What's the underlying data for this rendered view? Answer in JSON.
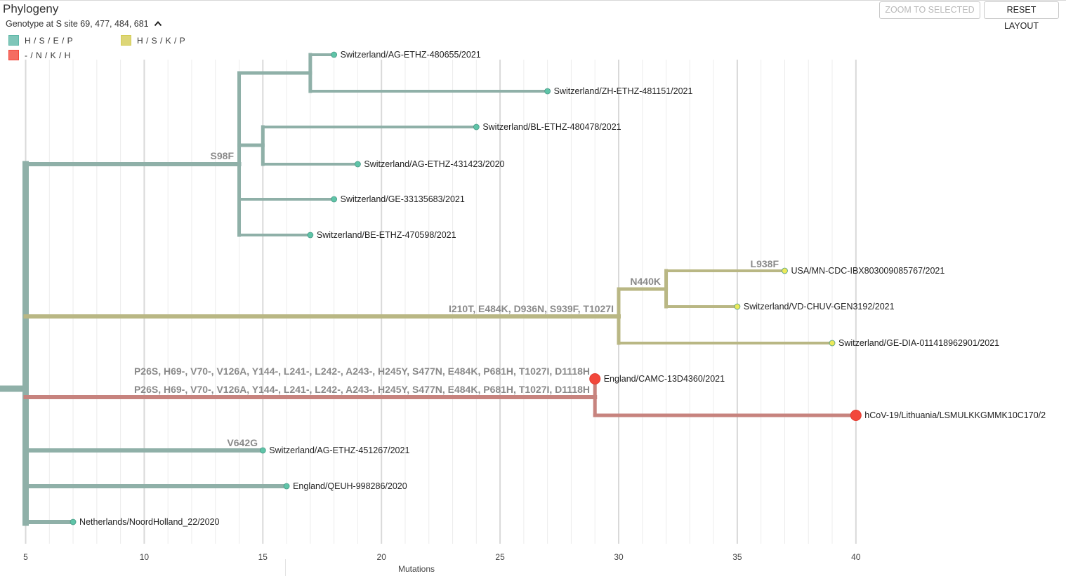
{
  "header": {
    "title": "Phylogeny",
    "subtitle": "Genotype at S site 69, 477, 484, 681",
    "zoom_label": "ZOOM TO SELECTED",
    "reset_label": "RESET LAYOUT"
  },
  "legend": [
    {
      "label": "H / S / E / P",
      "color": "#5fb8a8"
    },
    {
      "label": "H / S / K / P",
      "color": "#d4cc55"
    },
    {
      "label": "- / N / K / H",
      "color": "#f2473b"
    }
  ],
  "colors": {
    "teal_branch": "#8fb0a8",
    "olive_branch": "#b9b784",
    "red_branch": "#c7837e",
    "teal_tip": "#5fc4a8",
    "yellow_tip": "#ece95a",
    "red_tip": "#f2473b"
  },
  "chart_data": {
    "type": "phylogenetic-tree",
    "xlabel": "Mutations",
    "xlim": [
      4,
      41
    ],
    "xticks": [
      5,
      10,
      15,
      20,
      25,
      30,
      35,
      40
    ],
    "tips": [
      {
        "name": "Switzerland/AG-ETHZ-480655/2021",
        "mutations": 18,
        "genotype": "H / S / E / P"
      },
      {
        "name": "Switzerland/ZH-ETHZ-481151/2021",
        "mutations": 27,
        "genotype": "H / S / E / P"
      },
      {
        "name": "Switzerland/BL-ETHZ-480478/2021",
        "mutations": 24,
        "genotype": "H / S / E / P"
      },
      {
        "name": "Switzerland/AG-ETHZ-431423/2020",
        "mutations": 19,
        "genotype": "H / S / E / P"
      },
      {
        "name": "Switzerland/GE-33135683/2021",
        "mutations": 18,
        "genotype": "H / S / E / P"
      },
      {
        "name": "Switzerland/BE-ETHZ-470598/2021",
        "mutations": 17,
        "genotype": "H / S / E / P"
      },
      {
        "name": "USA/MN-CDC-IBX803009085767/2021",
        "mutations": 37,
        "genotype": "H / S / K / P"
      },
      {
        "name": "Switzerland/VD-CHUV-GEN3192/2021",
        "mutations": 35,
        "genotype": "H / S / K / P"
      },
      {
        "name": "Switzerland/GE-DIA-011418962901/2021",
        "mutations": 39,
        "genotype": "H / S / K / P"
      },
      {
        "name": "England/CAMC-13D4360/2021",
        "mutations": 29,
        "genotype": "- / N / K / H"
      },
      {
        "name": "hCoV-19/Lithuania/LSMULKKGMMK10C170/2",
        "mutations": 40,
        "genotype": "- / N / K / H"
      },
      {
        "name": "Switzerland/AG-ETHZ-451267/2021",
        "mutations": 15,
        "genotype": "H / S / E / P"
      },
      {
        "name": "England/QEUH-998286/2020",
        "mutations": 16,
        "genotype": "H / S / E / P"
      },
      {
        "name": "Netherlands/NoordHolland_22/2020",
        "mutations": 7,
        "genotype": "H / S / E / P"
      }
    ],
    "branch_mutations": [
      "S98F",
      "L938F",
      "N440K",
      "I210T, E484K, D936N, S939F, T1027I",
      "P26S, H69-, V70-, V126A, Y144-, L241-, L242-, A243-, H245Y, S477N, E484K, P681H, T1027I, D1118H",
      "P26S, H69-, V70-, V126A, Y144-, L241-, L242-, A243-, H245Y, S477N, E484K, P681H, T1027I, D1118H",
      "V642G"
    ]
  }
}
